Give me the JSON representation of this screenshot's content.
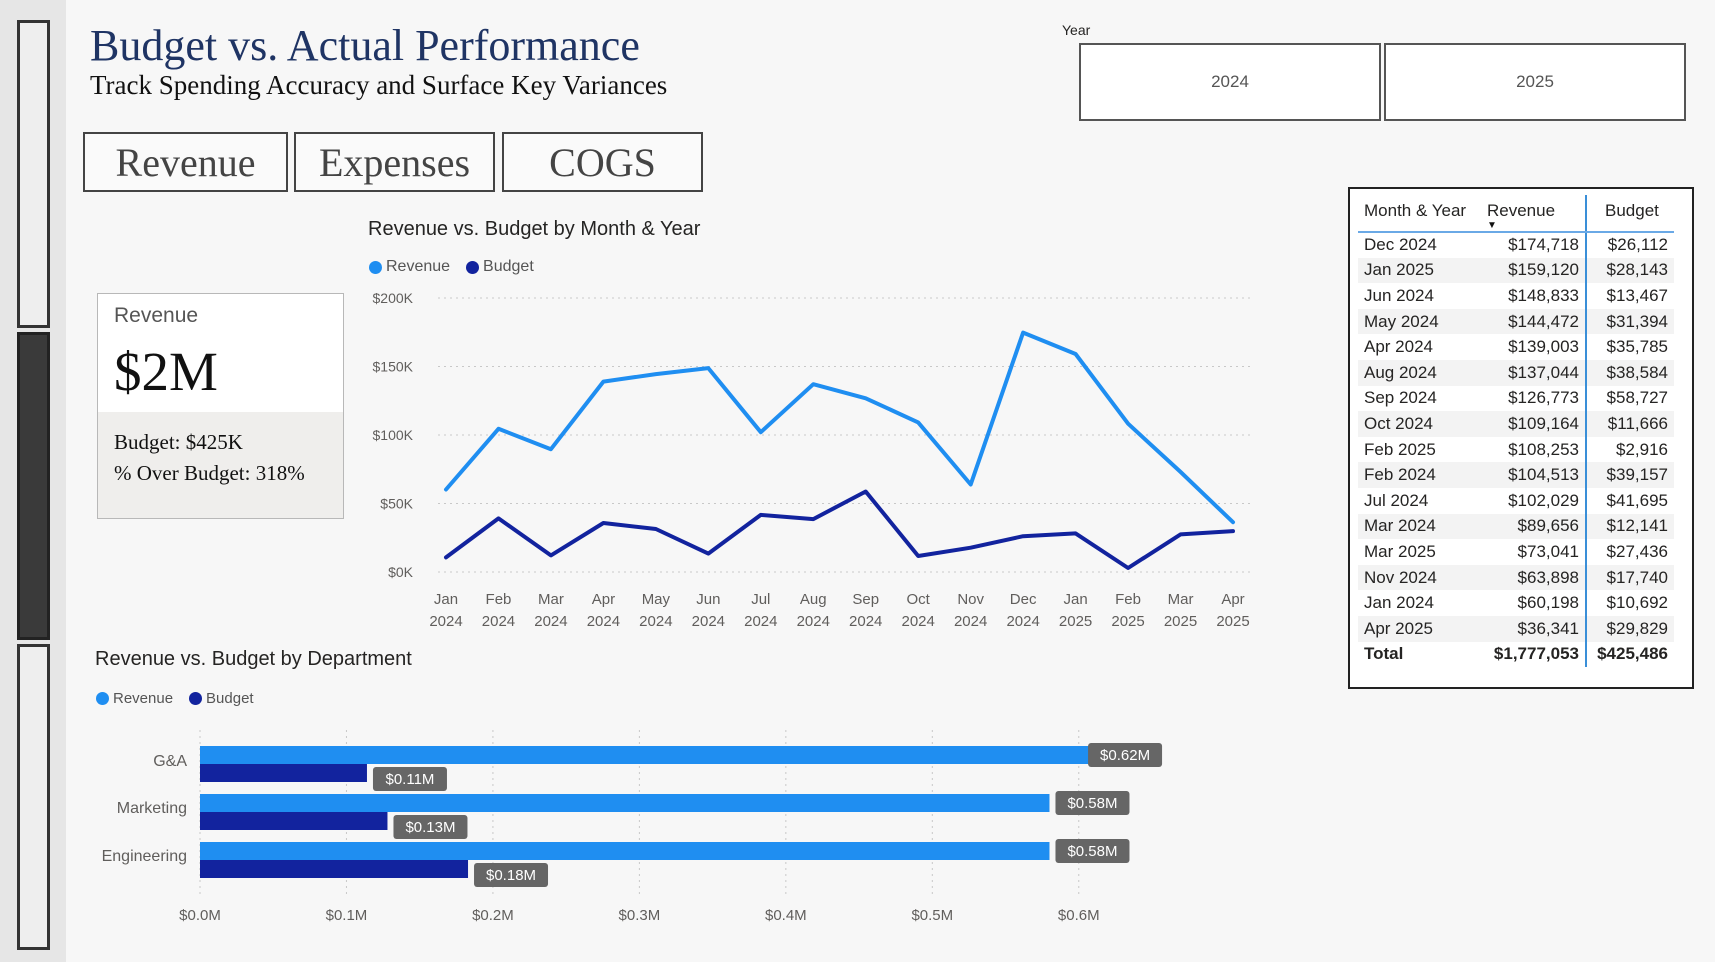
{
  "title": "Budget vs. Actual Performance",
  "subtitle": "Track Spending Accuracy and Surface Key Variances",
  "nav": {
    "revenue": "Revenue",
    "expenses": "Expenses",
    "cogs": "COGS"
  },
  "year_filter": {
    "label": "Year",
    "options": [
      "2024",
      "2025"
    ]
  },
  "kpi": {
    "label": "Revenue",
    "value": "$2M",
    "budget": "Budget: $425K",
    "over_budget": "% Over Budget: 318%"
  },
  "colors": {
    "revenue": "#1f8ef1",
    "budget": "#12239e",
    "label_bg": "#666666"
  },
  "chart_data": [
    {
      "type": "line",
      "title": "Revenue vs. Budget by Month & Year",
      "legend": [
        "Revenue",
        "Budget"
      ],
      "categories": [
        [
          "Jan",
          "2024"
        ],
        [
          "Feb",
          "2024"
        ],
        [
          "Mar",
          "2024"
        ],
        [
          "Apr",
          "2024"
        ],
        [
          "May",
          "2024"
        ],
        [
          "Jun",
          "2024"
        ],
        [
          "Jul",
          "2024"
        ],
        [
          "Aug",
          "2024"
        ],
        [
          "Sep",
          "2024"
        ],
        [
          "Oct",
          "2024"
        ],
        [
          "Nov",
          "2024"
        ],
        [
          "Dec",
          "2024"
        ],
        [
          "Jan",
          "2025"
        ],
        [
          "Feb",
          "2025"
        ],
        [
          "Mar",
          "2025"
        ],
        [
          "Apr",
          "2025"
        ]
      ],
      "series": [
        {
          "name": "Revenue",
          "values": [
            60198,
            104513,
            89656,
            139003,
            144472,
            148833,
            102029,
            137044,
            126773,
            109164,
            63898,
            174718,
            159120,
            108253,
            73041,
            36341
          ]
        },
        {
          "name": "Budget",
          "values": [
            10692,
            39157,
            12141,
            35785,
            31394,
            13467,
            41695,
            38584,
            58727,
            11666,
            17740,
            26112,
            28143,
            2916,
            27436,
            29829
          ]
        }
      ],
      "ylim": [
        0,
        200000
      ],
      "yticks": [
        {
          "value": 0,
          "label": "$0K"
        },
        {
          "value": 50000,
          "label": "$50K"
        },
        {
          "value": 100000,
          "label": "$100K"
        },
        {
          "value": 150000,
          "label": "$150K"
        },
        {
          "value": 200000,
          "label": "$200K"
        }
      ],
      "grid": true
    },
    {
      "type": "bar",
      "orientation": "horizontal",
      "title": "Revenue vs. Budget by Department",
      "legend": [
        "Revenue",
        "Budget"
      ],
      "categories": [
        "G&A",
        "Marketing",
        "Engineering"
      ],
      "series": [
        {
          "name": "Revenue",
          "values": [
            0.62,
            0.58,
            0.58
          ],
          "labels": [
            "$0.62M",
            "$0.58M",
            "$0.58M"
          ]
        },
        {
          "name": "Budget",
          "values": [
            0.114,
            0.128,
            0.183
          ],
          "labels": [
            "$0.11M",
            "$0.13M",
            "$0.18M"
          ]
        }
      ],
      "xlim": [
        0,
        0.65
      ],
      "xticks": [
        {
          "value": 0,
          "label": "$0.0M"
        },
        {
          "value": 0.1,
          "label": "$0.1M"
        },
        {
          "value": 0.2,
          "label": "$0.2M"
        },
        {
          "value": 0.3,
          "label": "$0.3M"
        },
        {
          "value": 0.4,
          "label": "$0.4M"
        },
        {
          "value": 0.5,
          "label": "$0.5M"
        },
        {
          "value": 0.6,
          "label": "$0.6M"
        }
      ],
      "grid": true
    },
    {
      "type": "table",
      "columns": [
        "Month & Year",
        "Revenue",
        "Budget"
      ],
      "rows": [
        [
          "Dec 2024",
          "$174,718",
          "$26,112"
        ],
        [
          "Jan 2025",
          "$159,120",
          "$28,143"
        ],
        [
          "Jun 2024",
          "$148,833",
          "$13,467"
        ],
        [
          "May 2024",
          "$144,472",
          "$31,394"
        ],
        [
          "Apr 2024",
          "$139,003",
          "$35,785"
        ],
        [
          "Aug 2024",
          "$137,044",
          "$38,584"
        ],
        [
          "Sep 2024",
          "$126,773",
          "$58,727"
        ],
        [
          "Oct 2024",
          "$109,164",
          "$11,666"
        ],
        [
          "Feb 2025",
          "$108,253",
          "$2,916"
        ],
        [
          "Feb 2024",
          "$104,513",
          "$39,157"
        ],
        [
          "Jul 2024",
          "$102,029",
          "$41,695"
        ],
        [
          "Mar 2024",
          "$89,656",
          "$12,141"
        ],
        [
          "Mar 2025",
          "$73,041",
          "$27,436"
        ],
        [
          "Nov 2024",
          "$63,898",
          "$17,740"
        ],
        [
          "Jan 2024",
          "$60,198",
          "$10,692"
        ],
        [
          "Apr 2025",
          "$36,341",
          "$29,829"
        ]
      ],
      "total": [
        "Total",
        "$1,777,053",
        "$425,486"
      ],
      "sort_icon": "sort-descending-icon"
    }
  ]
}
